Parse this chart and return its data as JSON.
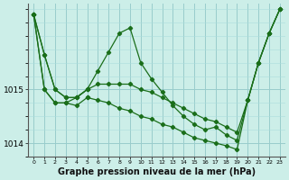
{
  "background_color": "#cceee8",
  "grid_color_major": "#99cccc",
  "grid_color_minor": "#aadddd",
  "line_color": "#1a6e1a",
  "marker_color": "#1a6e1a",
  "xlabel": "Graphe pression niveau de la mer (hPa)",
  "xlabel_fontsize": 7,
  "ylim": [
    1013.75,
    1016.6
  ],
  "xlim": [
    -0.5,
    23.5
  ],
  "yticks": [
    1014,
    1015
  ],
  "xticks": [
    0,
    1,
    2,
    3,
    4,
    5,
    6,
    7,
    8,
    9,
    10,
    11,
    12,
    13,
    14,
    15,
    16,
    17,
    18,
    19,
    20,
    21,
    22,
    23
  ],
  "line1_x": [
    0,
    1,
    2,
    3,
    4,
    5,
    6,
    7,
    8,
    9,
    10,
    11,
    12,
    13,
    14,
    15,
    16,
    17,
    18,
    19,
    20,
    21,
    22,
    23
  ],
  "line1_y": [
    1016.4,
    1015.65,
    1015.0,
    1014.85,
    1014.85,
    1015.0,
    1015.35,
    1015.7,
    1016.05,
    1016.15,
    1015.5,
    1015.2,
    1014.95,
    1014.7,
    1014.5,
    1014.35,
    1014.25,
    1014.3,
    1014.15,
    1014.05,
    1014.8,
    1015.5,
    1016.05,
    1016.5
  ],
  "line2_x": [
    0,
    1,
    2,
    3,
    4,
    5,
    6,
    7,
    8,
    9,
    10,
    11,
    12,
    13,
    14,
    15,
    16,
    17,
    18,
    19,
    20,
    21,
    22,
    23
  ],
  "line2_y": [
    1016.4,
    1015.65,
    1015.0,
    1014.85,
    1014.85,
    1015.0,
    1015.1,
    1015.1,
    1015.1,
    1015.1,
    1015.0,
    1014.95,
    1014.85,
    1014.75,
    1014.65,
    1014.55,
    1014.45,
    1014.4,
    1014.3,
    1014.2,
    1014.8,
    1015.5,
    1016.05,
    1016.5
  ],
  "line3_x": [
    0,
    1,
    2,
    3,
    4,
    5
  ],
  "line3_y": [
    1016.4,
    1015.0,
    1014.75,
    1014.75,
    1014.7,
    1014.85
  ],
  "line4_x": [
    0,
    1,
    2,
    3,
    4,
    5
  ],
  "line4_y": [
    1016.4,
    1015.0,
    1014.75,
    1014.75,
    1014.85,
    1015.0
  ],
  "line5_x": [
    5,
    6,
    7,
    8,
    9,
    10,
    11,
    12,
    13,
    14,
    15,
    16,
    17,
    18,
    19,
    20,
    21,
    22,
    23
  ],
  "line5_y": [
    1014.85,
    1014.8,
    1014.75,
    1014.65,
    1014.6,
    1014.5,
    1014.45,
    1014.35,
    1014.3,
    1014.2,
    1014.1,
    1014.05,
    1014.0,
    1013.95,
    1013.88,
    1014.8,
    1015.5,
    1016.05,
    1016.5
  ]
}
